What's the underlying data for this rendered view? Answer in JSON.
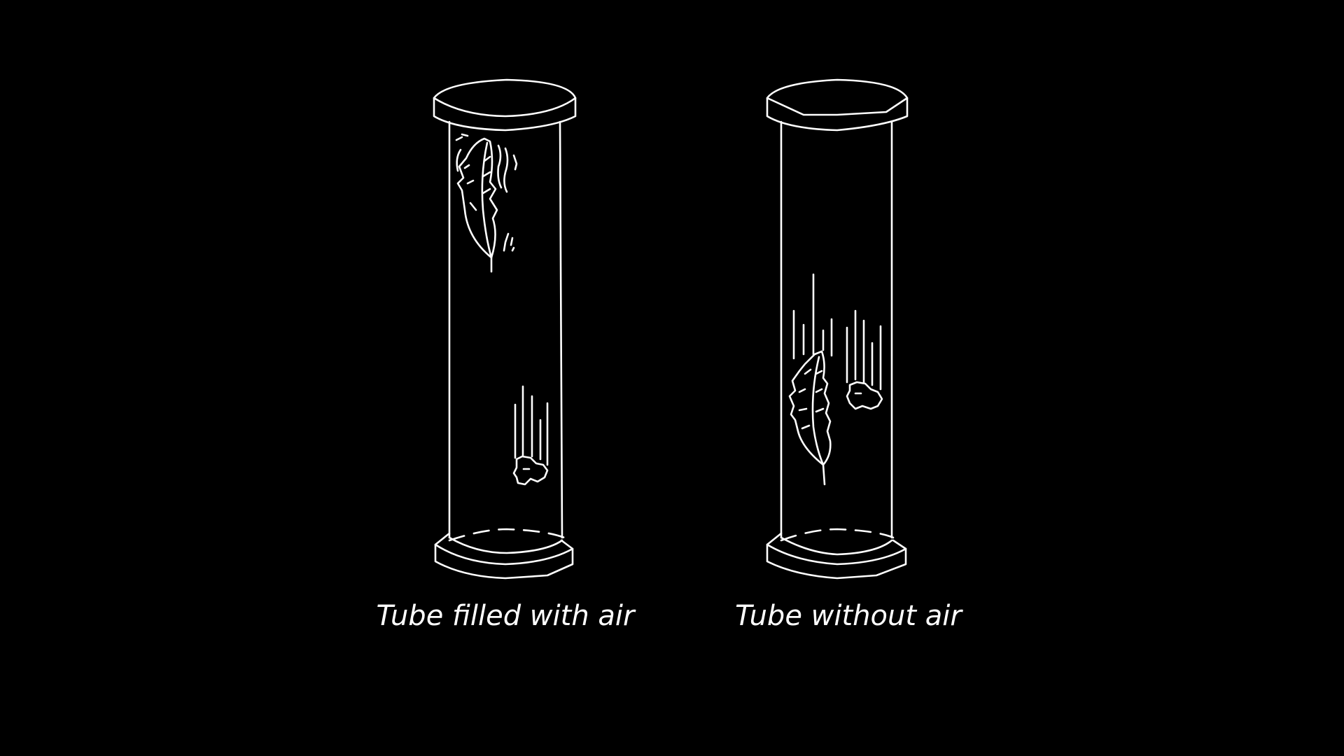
{
  "colors": {
    "background": "#000000",
    "line": "#ffffff",
    "text": "#ffffff"
  },
  "tubes": [
    {
      "caption": "Tube filled with air",
      "contents": [
        "feather-icon",
        "stone-icon"
      ]
    },
    {
      "caption": "Tube without air",
      "contents": [
        "feather-icon",
        "stone-icon"
      ]
    }
  ]
}
